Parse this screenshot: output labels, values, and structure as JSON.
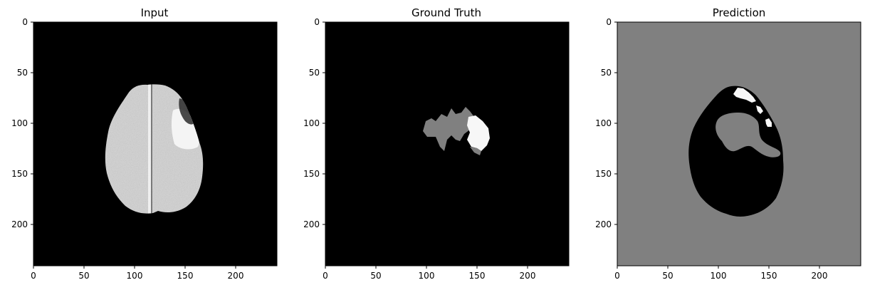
{
  "figure": {
    "panels": [
      {
        "title": "Input"
      },
      {
        "title": "Ground Truth"
      },
      {
        "title": "Prediction"
      }
    ]
  },
  "chart_data": [
    {
      "type": "heatmap",
      "title": "Input",
      "xlabel": "",
      "ylabel": "",
      "xlim": [
        0,
        240
      ],
      "ylim": [
        240,
        0
      ],
      "xticks": [
        0,
        50,
        100,
        150,
        200
      ],
      "yticks": [
        0,
        50,
        100,
        150,
        200
      ],
      "background": "#000000",
      "content": "grayscale brain MRI slice (axial), bright lesion near upper right"
    },
    {
      "type": "heatmap",
      "title": "Ground Truth",
      "xlabel": "",
      "ylabel": "",
      "xlim": [
        0,
        240
      ],
      "ylim": [
        240,
        0
      ],
      "xticks": [
        0,
        50,
        100,
        150,
        200
      ],
      "yticks": [
        0,
        50,
        100,
        150,
        200
      ],
      "background": "#000000",
      "content": "segmentation mask: gray region with white core around x 95-160, y 90-130"
    },
    {
      "type": "heatmap",
      "title": "Prediction",
      "xlabel": "",
      "ylabel": "",
      "xlim": [
        0,
        240
      ],
      "ylim": [
        240,
        0
      ],
      "xticks": [
        0,
        50,
        100,
        150,
        200
      ],
      "yticks": [
        0,
        50,
        100,
        150,
        200
      ],
      "background": "#808080",
      "content": "predicted mask: black brain-shaped region, gray blob inside, small white areas near top"
    }
  ],
  "colors": {
    "black": "#000000",
    "gray": "#808080",
    "white": "#ffffff"
  }
}
